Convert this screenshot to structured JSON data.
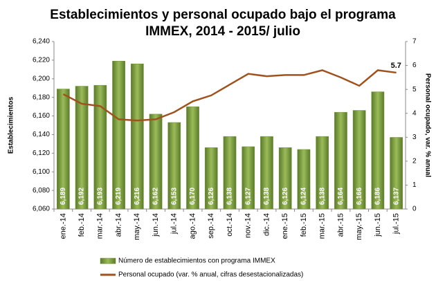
{
  "chart_data": {
    "type": "bar",
    "title": [
      "Establecimientos y personal ocupado bajo el programa",
      "IMMEX, 2014 - 2015/ julio"
    ],
    "y_label": "Establecimientos",
    "y2_label": "Personal ocupado, var. % anual",
    "categories": [
      "ene.-14",
      "feb.-14",
      "mar.-14",
      "abr.-14",
      "may.-14",
      "jun.-14",
      "jul.-14",
      "ago.-14",
      "sep.-14",
      "oct.-14",
      "nov.-14",
      "dic.-14",
      "ene.-15",
      "feb.-15",
      "mar.-15",
      "abr.-15",
      "may.-15",
      "jun.-15",
      "jul.-15"
    ],
    "series": [
      {
        "name": "Número de establecimientos con programa IMMEX",
        "type": "bar",
        "color": "#77933c",
        "values": [
          6189,
          6192,
          6193,
          6219,
          6216,
          6162,
          6153,
          6170,
          6126,
          6138,
          6127,
          6138,
          6126,
          6124,
          6138,
          6164,
          6166,
          6186,
          6137
        ],
        "value_labels": [
          "6,189",
          "6,192",
          "6,193",
          "6,219",
          "6,216",
          "6,162",
          "6,153",
          "6,170",
          "6,126",
          "6,138",
          "6,127",
          "6,138",
          "6,126",
          "6,124",
          "6,138",
          "6,164",
          "6,166",
          "6,186",
          "6,137"
        ]
      },
      {
        "name": "Personal ocupado (var. % anual, cifras desestacionalizadas)",
        "type": "line",
        "axis": "y2",
        "color": "#a0521e",
        "values": [
          4.8,
          4.4,
          4.3,
          3.75,
          3.7,
          3.75,
          4.05,
          4.5,
          4.75,
          5.2,
          5.65,
          5.55,
          5.6,
          5.6,
          5.8,
          5.5,
          5.15,
          5.8,
          5.7
        ]
      }
    ],
    "ylim": [
      6060,
      6240
    ],
    "yticks": [
      {
        "value": 6060,
        "label": "6,060"
      },
      {
        "value": 6080,
        "label": "6,080"
      },
      {
        "value": 6100,
        "label": "6,100"
      },
      {
        "value": 6120,
        "label": "6,120"
      },
      {
        "value": 6140,
        "label": "6,140"
      },
      {
        "value": 6160,
        "label": "6,160"
      },
      {
        "value": 6180,
        "label": "6,180"
      },
      {
        "value": 6200,
        "label": "6,200"
      },
      {
        "value": 6220,
        "label": "6,220"
      },
      {
        "value": 6240,
        "label": "6,240"
      }
    ],
    "y2lim": [
      0,
      7
    ],
    "y2ticks": [
      0,
      1,
      2,
      3,
      4,
      5,
      6,
      7
    ]
  }
}
